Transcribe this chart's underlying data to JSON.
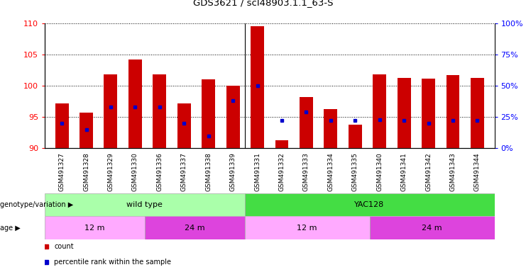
{
  "title": "GDS3621 / scl48903.1.1_63-S",
  "samples": [
    "GSM491327",
    "GSM491328",
    "GSM491329",
    "GSM491330",
    "GSM491336",
    "GSM491337",
    "GSM491338",
    "GSM491339",
    "GSM491331",
    "GSM491332",
    "GSM491333",
    "GSM491334",
    "GSM491335",
    "GSM491340",
    "GSM491341",
    "GSM491342",
    "GSM491343",
    "GSM491344"
  ],
  "counts": [
    97.2,
    95.7,
    101.8,
    104.2,
    101.8,
    97.2,
    101.0,
    100.0,
    109.5,
    91.3,
    98.2,
    96.3,
    93.8,
    101.8,
    101.2,
    101.1,
    101.7,
    101.2
  ],
  "percentiles": [
    20,
    15,
    33,
    33,
    33,
    20,
    10,
    38,
    50,
    22,
    29,
    22,
    22,
    23,
    22,
    20,
    22,
    22
  ],
  "ylim_left": [
    90,
    110
  ],
  "ylim_right": [
    0,
    100
  ],
  "yticks_left": [
    90,
    95,
    100,
    105,
    110
  ],
  "yticks_right": [
    0,
    25,
    50,
    75,
    100
  ],
  "bar_color": "#cc0000",
  "dot_color": "#0000cc",
  "background_color": "#ffffff",
  "genotype_groups": [
    {
      "label": "wild type",
      "start": 0,
      "end": 8,
      "color": "#aaffaa"
    },
    {
      "label": "YAC128",
      "start": 8,
      "end": 18,
      "color": "#44dd44"
    }
  ],
  "age_groups": [
    {
      "label": "12 m",
      "start": 0,
      "end": 4,
      "color": "#ffaaff"
    },
    {
      "label": "24 m",
      "start": 4,
      "end": 8,
      "color": "#dd44dd"
    },
    {
      "label": "12 m",
      "start": 8,
      "end": 13,
      "color": "#ffaaff"
    },
    {
      "label": "24 m",
      "start": 13,
      "end": 18,
      "color": "#dd44dd"
    }
  ],
  "legend_items": [
    {
      "label": "count",
      "color": "#cc0000"
    },
    {
      "label": "percentile rank within the sample",
      "color": "#0000cc"
    }
  ]
}
